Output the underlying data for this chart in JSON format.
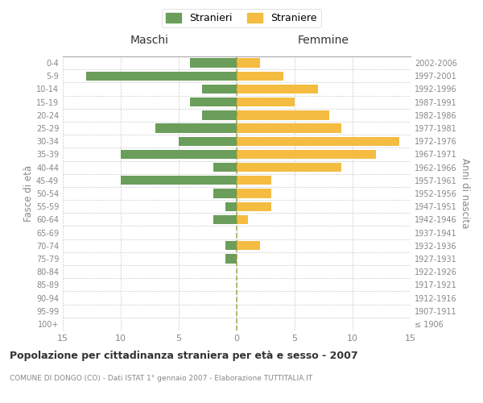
{
  "age_groups": [
    "100+",
    "95-99",
    "90-94",
    "85-89",
    "80-84",
    "75-79",
    "70-74",
    "65-69",
    "60-64",
    "55-59",
    "50-54",
    "45-49",
    "40-44",
    "35-39",
    "30-34",
    "25-29",
    "20-24",
    "15-19",
    "10-14",
    "5-9",
    "0-4"
  ],
  "birth_years": [
    "≤ 1906",
    "1907-1911",
    "1912-1916",
    "1917-1921",
    "1922-1926",
    "1927-1931",
    "1932-1936",
    "1937-1941",
    "1942-1946",
    "1947-1951",
    "1952-1956",
    "1957-1961",
    "1962-1966",
    "1967-1971",
    "1972-1976",
    "1977-1981",
    "1982-1986",
    "1987-1991",
    "1992-1996",
    "1997-2001",
    "2002-2006"
  ],
  "maschi": [
    0,
    0,
    0,
    0,
    0,
    1,
    1,
    0,
    2,
    1,
    2,
    10,
    2,
    10,
    5,
    7,
    3,
    4,
    3,
    13,
    4
  ],
  "femmine": [
    0,
    0,
    0,
    0,
    0,
    0,
    2,
    0,
    1,
    3,
    3,
    3,
    9,
    12,
    14,
    9,
    8,
    5,
    7,
    4,
    2
  ],
  "maschi_color": "#6a9e5a",
  "femmine_color": "#f5bc42",
  "title": "Popolazione per cittadinanza straniera per età e sesso - 2007",
  "subtitle": "COMUNE DI DONGO (CO) - Dati ISTAT 1° gennaio 2007 - Elaborazione TUTTITALIA.IT",
  "ylabel_left": "Fasce di età",
  "ylabel_right": "Anni di nascita",
  "xlabel_maschi": "Maschi",
  "xlabel_femmine": "Femmine",
  "legend_maschi": "Stranieri",
  "legend_femmine": "Straniere",
  "xlim": 15,
  "background_color": "#ffffff",
  "grid_color": "#cccccc",
  "text_color": "#888888",
  "title_color": "#333333",
  "axis_top_color": "#aaaaaa"
}
